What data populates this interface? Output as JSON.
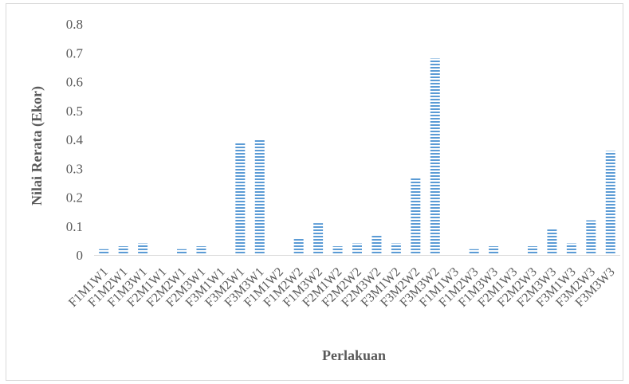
{
  "chart_data": {
    "type": "bar",
    "title": "",
    "xlabel": "Perlakuan",
    "ylabel": "Nilai Rerata (Ekor)",
    "ylim": [
      0,
      0.8
    ],
    "yticks": [
      "0",
      "0.1",
      "0.2",
      "0.3",
      "0.4",
      "0.5",
      "0.6",
      "0.7",
      "0.8"
    ],
    "grid": false,
    "legend": "none",
    "bar_color": "#5b9bd5",
    "categories": [
      "F1M1W1",
      "F1M2W1",
      "F1M3W1",
      "F2M1W1",
      "F2M2W1",
      "F2M3W1",
      "F3M1W1",
      "F3M2W1",
      "F3M3W1",
      "F1M1W2",
      "F1M2W2",
      "F1M3W2",
      "F2M1W2",
      "F2M2W2",
      "F2M3W2",
      "F3M1W2",
      "F3M2W2",
      "F3M3W2",
      "F1M1W3",
      "F1M2W3",
      "F1M3W3",
      "F2M1W3",
      "F2M2W3",
      "F2M3W3",
      "F3M1W3",
      "F3M2W3",
      "F3M3W3"
    ],
    "values": [
      0.02,
      0.03,
      0.04,
      0,
      0.02,
      0.03,
      0,
      0.39,
      0.4,
      0,
      0.06,
      0.11,
      0.03,
      0.04,
      0.07,
      0.04,
      0.27,
      0.68,
      0,
      0.02,
      0.03,
      0,
      0.03,
      0.09,
      0.04,
      0.12,
      0.36
    ]
  }
}
